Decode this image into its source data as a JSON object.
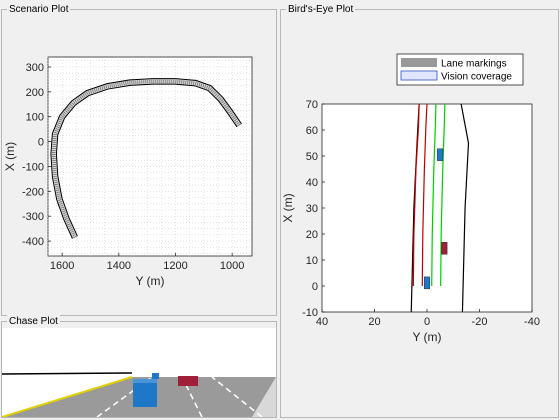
{
  "panels": {
    "scenario": {
      "title": "Scenario Plot"
    },
    "birdseye": {
      "title": "Bird's-Eye Plot"
    },
    "chase": {
      "title": "Chase Plot"
    }
  },
  "chart_data": [
    {
      "type": "line",
      "name": "scenario-plot",
      "xlabel": "Y (m)",
      "ylabel": "X (m)",
      "x_reversed": true,
      "xlim": [
        1650,
        930
      ],
      "ylim": [
        -460,
        340
      ],
      "xticks": [
        1600,
        1400,
        1200,
        1000
      ],
      "yticks": [
        300,
        200,
        100,
        0,
        -100,
        -200,
        -300,
        -400
      ],
      "grid": true,
      "road": {
        "x": [
          1555,
          1585,
          1610,
          1625,
          1630,
          1625,
          1600,
          1560,
          1510,
          1440,
          1360,
          1280,
          1200,
          1130,
          1080,
          1040,
          1005,
          975
        ],
        "y": [
          -385,
          -310,
          -230,
          -140,
          -50,
          30,
          100,
          155,
          195,
          222,
          237,
          242,
          242,
          235,
          215,
          170,
          115,
          65
        ]
      }
    },
    {
      "type": "line",
      "name": "birds-eye-plot",
      "xlabel": "Y (m)",
      "ylabel": "X (m)",
      "x_reversed": true,
      "xlim": [
        40,
        -40
      ],
      "ylim": [
        -10,
        70
      ],
      "xticks": [
        40,
        20,
        0,
        -20,
        -40
      ],
      "yticks": [
        70,
        60,
        50,
        40,
        30,
        20,
        10,
        0,
        -10
      ],
      "legend": {
        "position": "top-right",
        "items": [
          {
            "label": "Lane markings",
            "color": "#999999"
          },
          {
            "label": "Vision coverage",
            "color": "#e0e6ff"
          }
        ]
      },
      "series": [
        {
          "color": "#000000",
          "points": [
            [
              6.0,
              -10
            ],
            [
              5.0,
              30
            ],
            [
              3.8,
              55
            ],
            [
              3.0,
              70
            ]
          ]
        },
        {
          "color": "#000000",
          "points": [
            [
              -13.5,
              -10
            ],
            [
              -14.5,
              30
            ],
            [
              -15.8,
              55
            ],
            [
              -13.0,
              70
            ]
          ]
        },
        {
          "color": "#c00000",
          "points": [
            [
              5.2,
              0
            ],
            [
              5.0,
              20
            ],
            [
              4.2,
              45
            ],
            [
              3.2,
              62
            ],
            [
              3.0,
              70
            ]
          ]
        },
        {
          "color": "#c00000",
          "points": [
            [
              1.8,
              0
            ],
            [
              1.6,
              20
            ],
            [
              1.0,
              45
            ],
            [
              0.4,
              62
            ],
            [
              0.0,
              70
            ]
          ]
        },
        {
          "color": "#00cc00",
          "points": [
            [
              -1.8,
              0
            ],
            [
              -2.0,
              20
            ],
            [
              -2.6,
              45
            ],
            [
              -3.2,
              62
            ],
            [
              -3.4,
              70
            ]
          ]
        },
        {
          "color": "#00cc00",
          "points": [
            [
              -5.2,
              0
            ],
            [
              -5.4,
              20
            ],
            [
              -6.0,
              45
            ],
            [
              -6.6,
              62
            ],
            [
              -6.8,
              70
            ]
          ]
        }
      ],
      "vehicles": [
        {
          "x": 0.0,
          "y": 1.2,
          "color": "#1f77c8"
        },
        {
          "x": -5.0,
          "y": 50.5,
          "color": "#1f77c8"
        },
        {
          "x": -6.6,
          "y": 14.5,
          "color": "#a0203a"
        }
      ]
    }
  ]
}
